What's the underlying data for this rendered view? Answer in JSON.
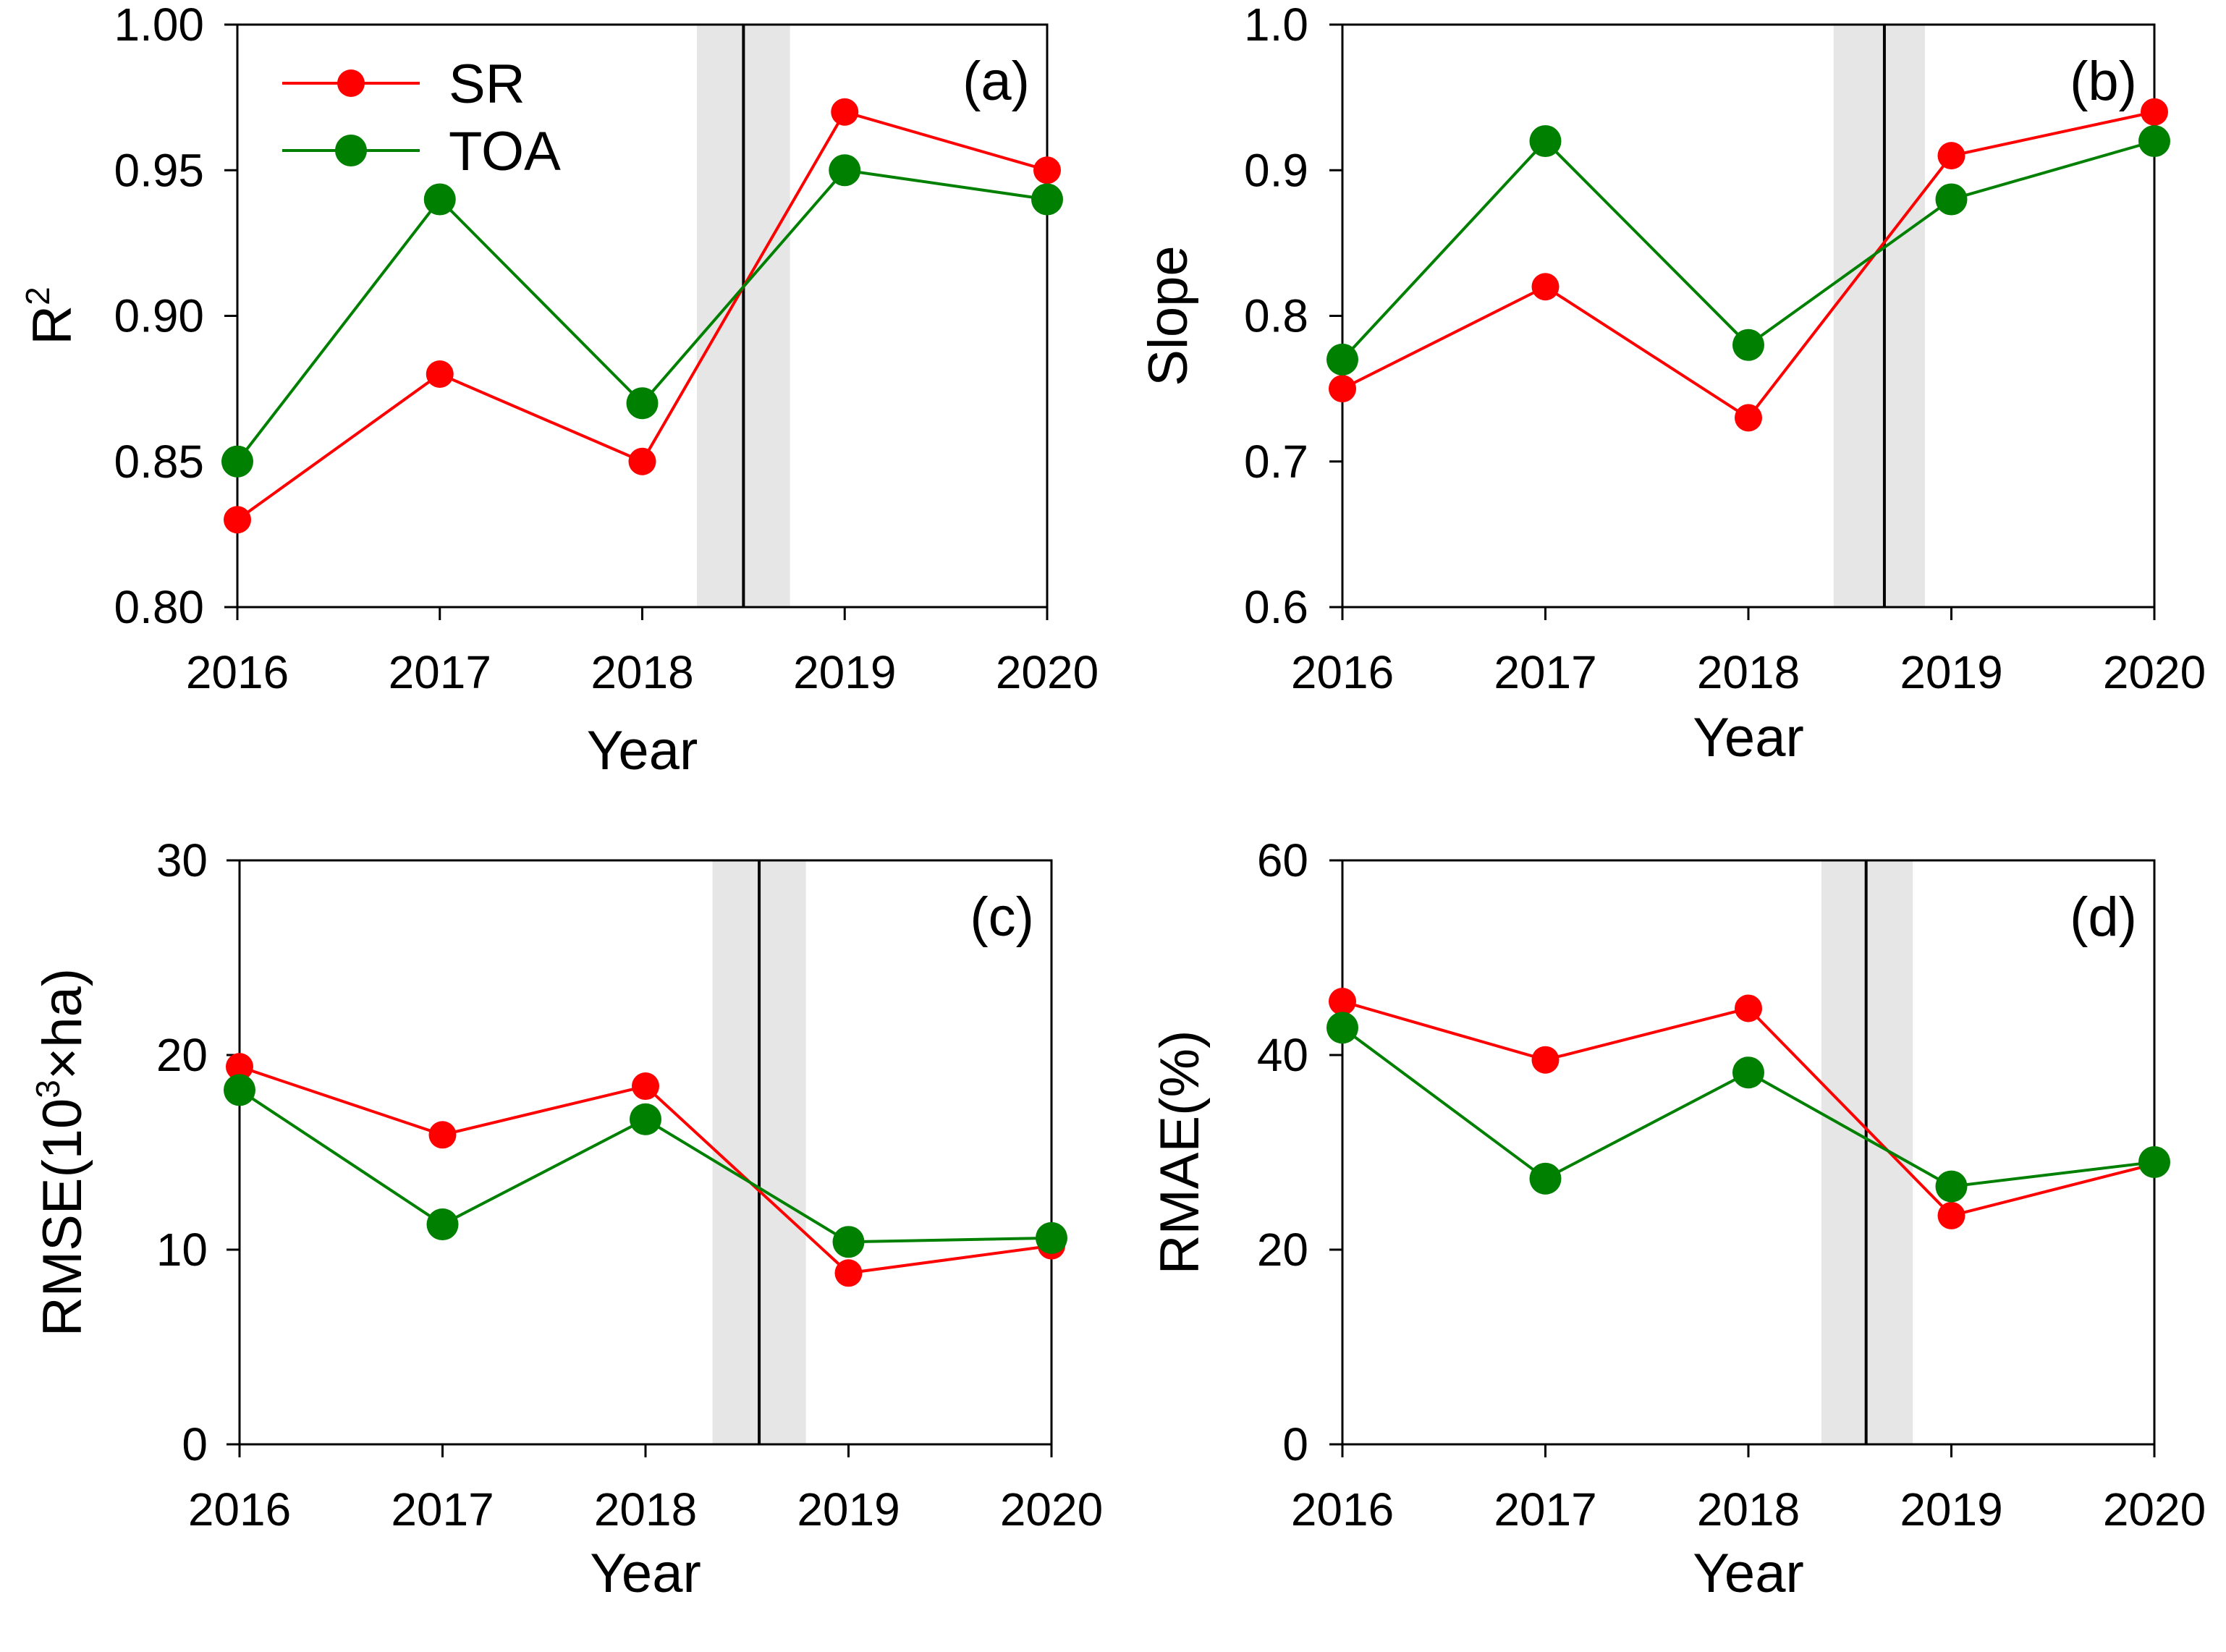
{
  "colors": {
    "sr": "#ff0000",
    "toa": "#008000",
    "band": "#e6e6e6",
    "axis": "#000000"
  },
  "legend": [
    {
      "name": "SR",
      "color": "#ff0000"
    },
    {
      "name": "TOA",
      "color": "#008000"
    }
  ],
  "chart_data": [
    {
      "type": "line",
      "panel": "(a)",
      "categories": [
        "2016",
        "2017",
        "2018",
        "2019",
        "2020"
      ],
      "series": [
        {
          "name": "SR",
          "values": [
            0.83,
            0.88,
            0.85,
            0.97,
            0.95
          ]
        },
        {
          "name": "TOA",
          "values": [
            0.85,
            0.94,
            0.87,
            0.95,
            0.94
          ]
        }
      ],
      "xlabel": "Year",
      "ylabel": "R",
      "ylabel_sup": "2",
      "ylabel_after": "",
      "ylim": [
        0.8,
        1.0
      ],
      "yticks": [
        "0.80",
        "0.85",
        "0.90",
        "0.95",
        "1.00"
      ],
      "vline_x": 2018.5,
      "band": [
        2018.27,
        2018.73
      ]
    },
    {
      "type": "line",
      "panel": "(b)",
      "categories": [
        "2016",
        "2017",
        "2018",
        "2019",
        "2020"
      ],
      "series": [
        {
          "name": "SR",
          "values": [
            0.75,
            0.82,
            0.73,
            0.91,
            0.94
          ]
        },
        {
          "name": "TOA",
          "values": [
            0.77,
            0.92,
            0.78,
            0.88,
            0.92
          ]
        }
      ],
      "xlabel": "Year",
      "ylabel": "Slope",
      "ylabel_sup": "",
      "ylabel_after": "",
      "ylim": [
        0.6,
        1.0
      ],
      "yticks": [
        "0.6",
        "0.7",
        "0.8",
        "0.9",
        "1.0"
      ],
      "vline_x": 2018.67,
      "band": [
        2018.42,
        2018.87
      ]
    },
    {
      "type": "line",
      "panel": "(c)",
      "categories": [
        "2016",
        "2017",
        "2018",
        "2019",
        "2020"
      ],
      "series": [
        {
          "name": "SR",
          "values": [
            19.4,
            15.9,
            18.4,
            8.8,
            10.2
          ]
        },
        {
          "name": "TOA",
          "values": [
            18.2,
            11.3,
            16.7,
            10.4,
            10.6
          ]
        }
      ],
      "xlabel": "Year",
      "ylabel": "RMSE(10",
      "ylabel_sup": "3",
      "ylabel_after": "×ha)",
      "ylim": [
        0,
        30
      ],
      "yticks": [
        "0",
        "10",
        "20",
        "30"
      ],
      "vline_x": 2018.56,
      "band": [
        2018.33,
        2018.79
      ]
    },
    {
      "type": "line",
      "panel": "(d)",
      "categories": [
        "2016",
        "2017",
        "2018",
        "2019",
        "2020"
      ],
      "series": [
        {
          "name": "SR",
          "values": [
            45.5,
            39.5,
            44.8,
            23.5,
            28.8
          ]
        },
        {
          "name": "TOA",
          "values": [
            42.8,
            27.3,
            38.2,
            26.5,
            29.0
          ]
        }
      ],
      "xlabel": "Year",
      "ylabel": "RMAE(%)",
      "ylabel_sup": "",
      "ylabel_after": "",
      "ylim": [
        0,
        60
      ],
      "yticks": [
        "0",
        "20",
        "40",
        "60"
      ],
      "vline_x": 2018.58,
      "band": [
        2018.36,
        2018.81
      ]
    }
  ]
}
